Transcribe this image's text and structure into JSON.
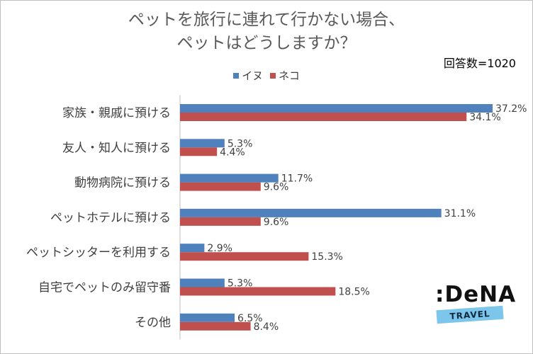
{
  "title_line1": "ペットを旅行に連れて行かない場合、",
  "title_line2": "ペットはどうしますか？",
  "note": "回答数=1020",
  "logo": {
    "word": ":DeNA",
    "sub": "TRAVEL"
  },
  "colors": {
    "dog": "#4f81bd",
    "cat": "#c0504d"
  },
  "chart_data": {
    "type": "bar",
    "orientation": "horizontal",
    "categories": [
      "家族・親戚に預ける",
      "友人・知人に預ける",
      "動物病院に預ける",
      "ペットホテルに預ける",
      "ペットシッターを利用する",
      "自宅でペットのみ留守番",
      "その他"
    ],
    "series": [
      {
        "name": "イヌ",
        "values": [
          37.2,
          5.3,
          11.7,
          31.1,
          2.9,
          5.3,
          6.5
        ]
      },
      {
        "name": "ネコ",
        "values": [
          34.1,
          4.4,
          9.6,
          9.6,
          15.3,
          18.5,
          8.4
        ]
      }
    ],
    "value_suffix": "%",
    "xlim": [
      0,
      40
    ],
    "legend_position": "top",
    "grid": false
  }
}
